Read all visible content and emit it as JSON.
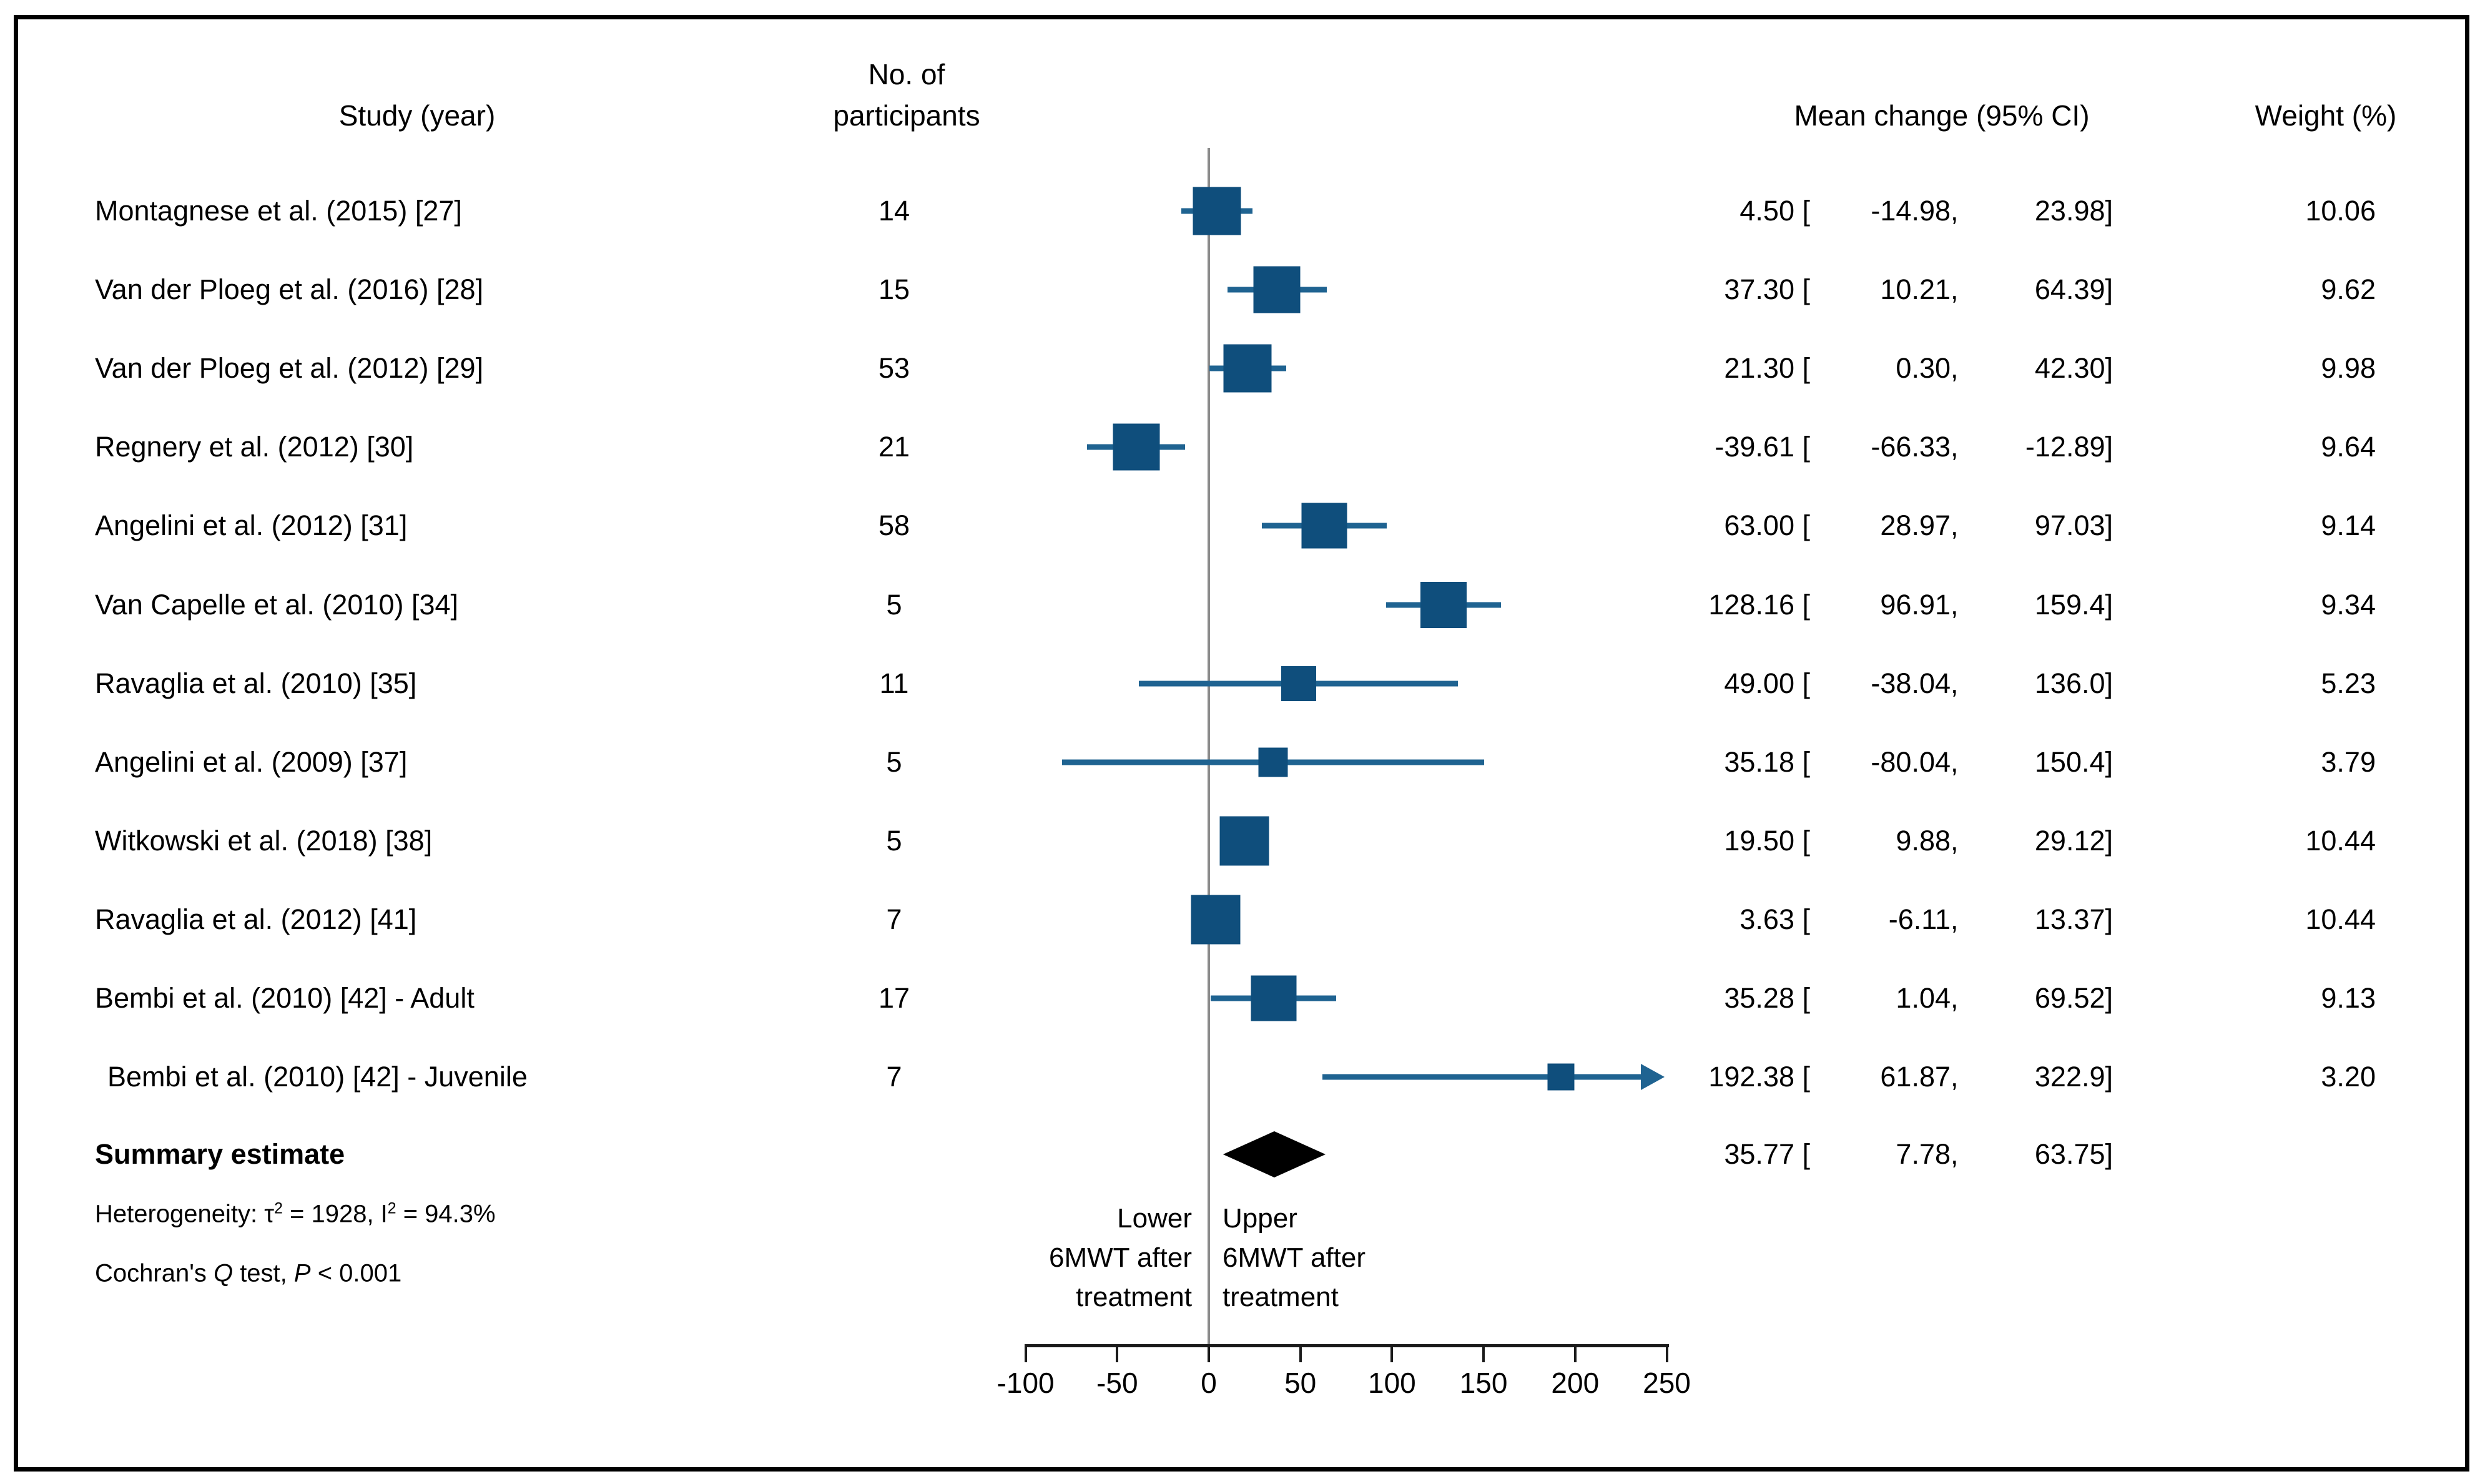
{
  "header": {
    "study": "Study (year)",
    "participants_line1": "No. of",
    "participants_line2": "participants",
    "mean_change": "Mean change (95% CI)",
    "weight": "Weight (%)"
  },
  "chart_data": {
    "type": "scatter",
    "variant": "forest-plot",
    "xlim": [
      -100,
      250
    ],
    "x_ticks": [
      -100,
      -50,
      0,
      50,
      100,
      150,
      200,
      250
    ],
    "zero_reference": 0,
    "legend_position": "none",
    "grid": false,
    "studies": [
      {
        "label": "Montagnese et al. (2015) [27]",
        "n": "14",
        "mean": 4.5,
        "ci_low": -14.98,
        "ci_high": 23.98,
        "weight": 10.06,
        "mean_txt": "4.50",
        "low_txt": "-14.98",
        "high_txt": "23.98",
        "weight_txt": "10.06"
      },
      {
        "label": "Van der Ploeg et al. (2016) [28]",
        "n": "15",
        "mean": 37.3,
        "ci_low": 10.21,
        "ci_high": 64.39,
        "weight": 9.62,
        "mean_txt": "37.30",
        "low_txt": "10.21",
        "high_txt": "64.39",
        "weight_txt": "9.62"
      },
      {
        "label": "Van der Ploeg et al. (2012) [29]",
        "n": "53",
        "mean": 21.3,
        "ci_low": 0.3,
        "ci_high": 42.3,
        "weight": 9.98,
        "mean_txt": "21.30",
        "low_txt": "0.30",
        "high_txt": "42.30",
        "weight_txt": "9.98"
      },
      {
        "label": "Regnery et al. (2012) [30]",
        "n": "21",
        "mean": -39.61,
        "ci_low": -66.33,
        "ci_high": -12.89,
        "weight": 9.64,
        "mean_txt": "-39.61",
        "low_txt": "-66.33",
        "high_txt": "-12.89",
        "weight_txt": "9.64"
      },
      {
        "label": "Angelini et al. (2012) [31]",
        "n": "58",
        "mean": 63.0,
        "ci_low": 28.97,
        "ci_high": 97.03,
        "weight": 9.14,
        "mean_txt": "63.00",
        "low_txt": "28.97",
        "high_txt": "97.03",
        "weight_txt": "9.14"
      },
      {
        "label": "Van Capelle et al. (2010) [34]",
        "n": "5",
        "mean": 128.16,
        "ci_low": 96.91,
        "ci_high": 159.4,
        "weight": 9.34,
        "mean_txt": "128.16",
        "low_txt": "96.91",
        "high_txt": "159.4",
        "weight_txt": "9.34"
      },
      {
        "label": "Ravaglia et al. (2010) [35]",
        "n": "11",
        "mean": 49.0,
        "ci_low": -38.04,
        "ci_high": 136.0,
        "weight": 5.23,
        "mean_txt": "49.00",
        "low_txt": "-38.04",
        "high_txt": "136.0",
        "weight_txt": "5.23"
      },
      {
        "label": "Angelini et al. (2009) [37]",
        "n": "5",
        "mean": 35.18,
        "ci_low": -80.04,
        "ci_high": 150.4,
        "weight": 3.79,
        "mean_txt": "35.18",
        "low_txt": "-80.04",
        "high_txt": "150.4",
        "weight_txt": "3.79"
      },
      {
        "label": "Witkowski et al. (2018) [38]",
        "n": "5",
        "mean": 19.5,
        "ci_low": 9.88,
        "ci_high": 29.12,
        "weight": 10.44,
        "mean_txt": "19.50",
        "low_txt": "9.88",
        "high_txt": "29.12",
        "weight_txt": "10.44"
      },
      {
        "label": "Ravaglia et al. (2012) [41]",
        "n": "7",
        "mean": 3.63,
        "ci_low": -6.11,
        "ci_high": 13.37,
        "weight": 10.44,
        "mean_txt": "3.63",
        "low_txt": "-6.11",
        "high_txt": "13.37",
        "weight_txt": "10.44"
      },
      {
        "label": "Bembi et al. (2010) [42] - Adult",
        "n": "17",
        "mean": 35.28,
        "ci_low": 1.04,
        "ci_high": 69.52,
        "weight": 9.13,
        "mean_txt": "35.28",
        "low_txt": "1.04",
        "high_txt": "69.52",
        "weight_txt": "9.13"
      },
      {
        "label": "Bembi et al. (2010) [42] - Juvenile",
        "n": "7",
        "mean": 192.38,
        "ci_low": 61.87,
        "ci_high": 322.9,
        "weight": 3.2,
        "mean_txt": "192.38",
        "low_txt": "61.87",
        "high_txt": "322.9",
        "weight_txt": "3.20",
        "arrow_right": true,
        "indent": true
      }
    ],
    "summary": {
      "label": "Summary estimate",
      "mean": 35.77,
      "ci_low": 7.78,
      "ci_high": 63.75,
      "mean_txt": "35.77",
      "low_txt": "7.78",
      "high_txt": "63.75"
    },
    "heterogeneity": {
      "p1": "Heterogeneity: τ",
      "sup1": "2",
      "p2": " = 1928, I",
      "sup2": "2",
      "p3": " = 94.3%"
    },
    "cochran": {
      "p1": "Cochran's ",
      "q": "Q",
      "p2": " test, ",
      "p": "P",
      "p3": " < 0.001"
    },
    "direction_labels": {
      "lower": [
        "Lower",
        "6MWT after",
        "treatment"
      ],
      "upper": [
        "Upper",
        "6MWT after",
        "treatment"
      ]
    }
  },
  "colors": {
    "marker": "#0F4E7C",
    "ci_line": "#1F6391",
    "summary_diamond": "#000000",
    "zero_line": "#8C8C8C",
    "axis": "#1A1A1A"
  }
}
